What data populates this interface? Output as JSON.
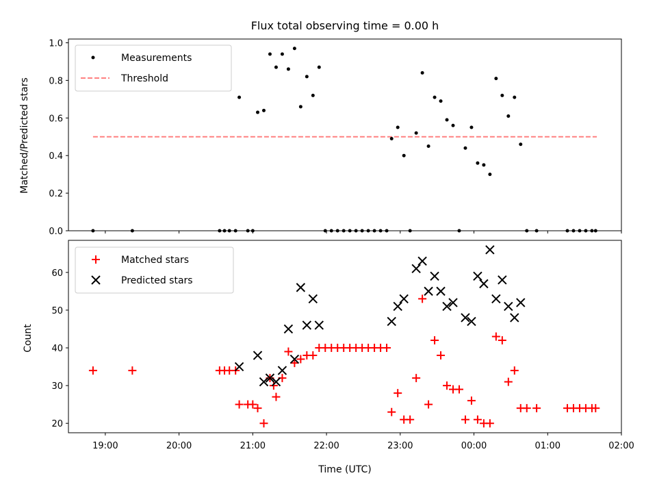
{
  "chart_data": [
    {
      "type": "scatter",
      "title": "Flux total observing time = 0.00 h",
      "xlabel": "",
      "ylabel": "Matched/Predicted stars",
      "xlim": [
        "18:30",
        "02:00"
      ],
      "ylim": [
        0,
        1.02
      ],
      "yticks": [
        0.0,
        0.2,
        0.4,
        0.6,
        0.8,
        1.0
      ],
      "ytick_labels": [
        "0.0",
        "0.2",
        "0.4",
        "0.6",
        "0.8",
        "1.0"
      ],
      "grid": false,
      "legend_position": "upper-left",
      "legend": [
        "Measurements",
        "Threshold"
      ],
      "threshold": {
        "name": "Threshold",
        "value": 0.5,
        "x_start": "18:50",
        "x_end": "01:40",
        "color": "#ff8080",
        "style": "dashed"
      },
      "series": [
        {
          "name": "Measurements",
          "marker": "dot",
          "color": "#000000",
          "points": [
            [
              "18:50",
              0.0
            ],
            [
              "19:22",
              0.0
            ],
            [
              "20:33",
              0.0
            ],
            [
              "20:37",
              0.0
            ],
            [
              "20:41",
              0.0
            ],
            [
              "20:46",
              0.0
            ],
            [
              "20:49",
              0.71
            ],
            [
              "20:56",
              0.0
            ],
            [
              "21:00",
              0.0
            ],
            [
              "21:04",
              0.63
            ],
            [
              "21:09",
              0.64
            ],
            [
              "21:14",
              0.94
            ],
            [
              "21:19",
              0.87
            ],
            [
              "21:24",
              0.94
            ],
            [
              "21:29",
              0.86
            ],
            [
              "21:34",
              0.97
            ],
            [
              "21:39",
              0.66
            ],
            [
              "21:44",
              0.82
            ],
            [
              "21:49",
              0.72
            ],
            [
              "21:54",
              0.87
            ],
            [
              "21:59",
              0.0
            ],
            [
              "22:04",
              0.0
            ],
            [
              "22:09",
              0.0
            ],
            [
              "22:14",
              0.0
            ],
            [
              "22:19",
              0.0
            ],
            [
              "22:24",
              0.0
            ],
            [
              "22:29",
              0.0
            ],
            [
              "22:34",
              0.0
            ],
            [
              "22:39",
              0.0
            ],
            [
              "22:44",
              0.0
            ],
            [
              "22:49",
              0.0
            ],
            [
              "22:53",
              0.49
            ],
            [
              "22:58",
              0.55
            ],
            [
              "23:03",
              0.4
            ],
            [
              "23:08",
              0.0
            ],
            [
              "23:13",
              0.52
            ],
            [
              "23:18",
              0.84
            ],
            [
              "23:23",
              0.45
            ],
            [
              "23:28",
              0.71
            ],
            [
              "23:33",
              0.69
            ],
            [
              "23:38",
              0.59
            ],
            [
              "23:43",
              0.56
            ],
            [
              "23:48",
              0.0
            ],
            [
              "23:53",
              0.44
            ],
            [
              "23:58",
              0.55
            ],
            [
              "00:03",
              0.36
            ],
            [
              "00:08",
              0.35
            ],
            [
              "00:13",
              0.3
            ],
            [
              "00:18",
              0.81
            ],
            [
              "00:23",
              0.72
            ],
            [
              "00:28",
              0.61
            ],
            [
              "00:33",
              0.71
            ],
            [
              "00:38",
              0.46
            ],
            [
              "00:43",
              0.0
            ],
            [
              "00:51",
              0.0
            ],
            [
              "01:16",
              0.0
            ],
            [
              "01:21",
              0.0
            ],
            [
              "01:26",
              0.0
            ],
            [
              "01:31",
              0.0
            ],
            [
              "01:36",
              0.0
            ],
            [
              "01:39",
              0.0
            ]
          ]
        }
      ]
    },
    {
      "type": "scatter",
      "title": "",
      "xlabel": "Time (UTC)",
      "ylabel": "Count",
      "xlim": [
        "18:30",
        "02:00"
      ],
      "xticks": [
        "19:00",
        "20:00",
        "21:00",
        "22:00",
        "23:00",
        "00:00",
        "01:00",
        "02:00"
      ],
      "ylim": [
        17.5,
        68.5
      ],
      "yticks": [
        20,
        30,
        40,
        50,
        60
      ],
      "ytick_labels": [
        "20",
        "30",
        "40",
        "50",
        "60"
      ],
      "grid": false,
      "legend_position": "upper-left",
      "legend": [
        "Matched stars",
        "Predicted stars"
      ],
      "series": [
        {
          "name": "Matched stars",
          "marker": "plus",
          "color": "#ff0000",
          "points": [
            [
              "18:50",
              34
            ],
            [
              "19:22",
              34
            ],
            [
              "20:33",
              34
            ],
            [
              "20:37",
              34
            ],
            [
              "20:41",
              34
            ],
            [
              "20:46",
              34
            ],
            [
              "20:49",
              25
            ],
            [
              "20:56",
              25
            ],
            [
              "21:00",
              25
            ],
            [
              "21:04",
              24
            ],
            [
              "21:09",
              20
            ],
            [
              "21:14",
              32
            ],
            [
              "21:17",
              30
            ],
            [
              "21:19",
              27
            ],
            [
              "21:24",
              32
            ],
            [
              "21:29",
              39
            ],
            [
              "21:34",
              36
            ],
            [
              "21:39",
              37
            ],
            [
              "21:44",
              38
            ],
            [
              "21:49",
              38
            ],
            [
              "21:54",
              40
            ],
            [
              "21:59",
              40
            ],
            [
              "22:04",
              40
            ],
            [
              "22:09",
              40
            ],
            [
              "22:14",
              40
            ],
            [
              "22:19",
              40
            ],
            [
              "22:24",
              40
            ],
            [
              "22:29",
              40
            ],
            [
              "22:34",
              40
            ],
            [
              "22:39",
              40
            ],
            [
              "22:44",
              40
            ],
            [
              "22:49",
              40
            ],
            [
              "22:53",
              23
            ],
            [
              "22:58",
              28
            ],
            [
              "23:03",
              21
            ],
            [
              "23:08",
              21
            ],
            [
              "23:13",
              32
            ],
            [
              "23:18",
              53
            ],
            [
              "23:23",
              25
            ],
            [
              "23:28",
              42
            ],
            [
              "23:33",
              38
            ],
            [
              "23:38",
              30
            ],
            [
              "23:43",
              29
            ],
            [
              "23:48",
              29
            ],
            [
              "23:53",
              21
            ],
            [
              "23:58",
              26
            ],
            [
              "00:03",
              21
            ],
            [
              "00:08",
              20
            ],
            [
              "00:13",
              20
            ],
            [
              "00:18",
              43
            ],
            [
              "00:23",
              42
            ],
            [
              "00:28",
              31
            ],
            [
              "00:33",
              34
            ],
            [
              "00:38",
              24
            ],
            [
              "00:43",
              24
            ],
            [
              "00:51",
              24
            ],
            [
              "01:16",
              24
            ],
            [
              "01:21",
              24
            ],
            [
              "01:26",
              24
            ],
            [
              "01:31",
              24
            ],
            [
              "01:36",
              24
            ],
            [
              "01:39",
              24
            ]
          ]
        },
        {
          "name": "Predicted stars",
          "marker": "x",
          "color": "#000000",
          "points": [
            [
              "20:49",
              35
            ],
            [
              "21:04",
              38
            ],
            [
              "21:09",
              31
            ],
            [
              "21:14",
              32
            ],
            [
              "21:19",
              31
            ],
            [
              "21:24",
              34
            ],
            [
              "21:29",
              45
            ],
            [
              "21:34",
              37
            ],
            [
              "21:39",
              56
            ],
            [
              "21:44",
              46
            ],
            [
              "21:49",
              53
            ],
            [
              "21:54",
              46
            ],
            [
              "22:53",
              47
            ],
            [
              "22:58",
              51
            ],
            [
              "23:03",
              53
            ],
            [
              "23:13",
              61
            ],
            [
              "23:18",
              63
            ],
            [
              "23:23",
              55
            ],
            [
              "23:28",
              59
            ],
            [
              "23:33",
              55
            ],
            [
              "23:38",
              51
            ],
            [
              "23:43",
              52
            ],
            [
              "23:53",
              48
            ],
            [
              "23:58",
              47
            ],
            [
              "00:03",
              59
            ],
            [
              "00:08",
              57
            ],
            [
              "00:13",
              66
            ],
            [
              "00:18",
              53
            ],
            [
              "00:23",
              58
            ],
            [
              "00:28",
              51
            ],
            [
              "00:33",
              48
            ],
            [
              "00:38",
              52
            ]
          ]
        }
      ]
    }
  ]
}
